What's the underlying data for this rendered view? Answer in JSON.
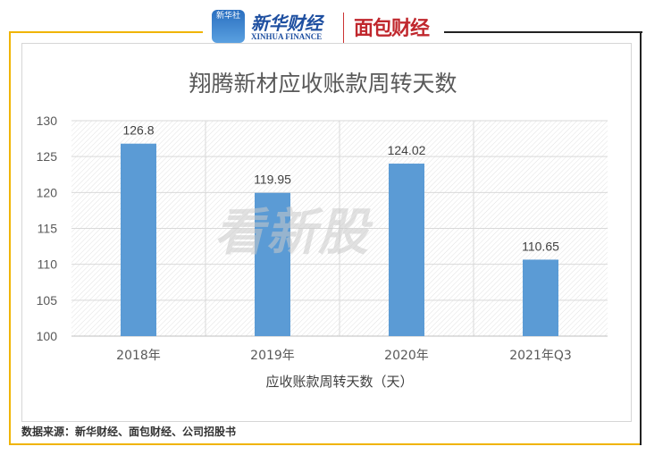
{
  "header": {
    "xinhua_badge": "新华社",
    "xinhua_brand": "新华财经",
    "xinhua_sub": "XINHUA FINANCE",
    "mianbao_brand": "面包财经"
  },
  "watermark": "看新股",
  "source": "数据来源：新华财经、面包财经、公司招股书",
  "colors": {
    "bar": "#5b9bd5",
    "frame_accent": "#f0b400"
  },
  "chart_data": {
    "type": "bar",
    "title": "翔腾新材应收账款周转天数",
    "categories": [
      "2018年",
      "2019年",
      "2020年",
      "2021年Q3"
    ],
    "series": [
      {
        "name": "应收账款周转天数（天）",
        "values": [
          126.8,
          119.95,
          124.02,
          110.65
        ]
      }
    ],
    "data_labels": [
      "126.8",
      "119.95",
      "124.02",
      "110.65"
    ],
    "ylim": [
      100,
      130
    ],
    "yticks": [
      100,
      105,
      110,
      115,
      120,
      125,
      130
    ],
    "grid": true,
    "legend": "bottom"
  }
}
